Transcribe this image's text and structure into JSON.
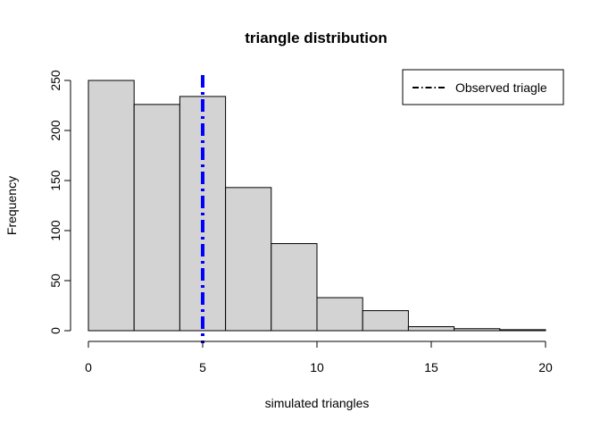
{
  "chart_data": {
    "type": "bar",
    "title": "triangle distribution",
    "xlabel": "simulated triangles",
    "ylabel": "Frequency",
    "bins": [
      {
        "from": 0,
        "to": 2,
        "count": 250
      },
      {
        "from": 2,
        "to": 4,
        "count": 226
      },
      {
        "from": 4,
        "to": 6,
        "count": 234
      },
      {
        "from": 6,
        "to": 8,
        "count": 143
      },
      {
        "from": 8,
        "to": 10,
        "count": 87
      },
      {
        "from": 10,
        "to": 12,
        "count": 33
      },
      {
        "from": 12,
        "to": 14,
        "count": 20
      },
      {
        "from": 14,
        "to": 16,
        "count": 4
      },
      {
        "from": 16,
        "to": 18,
        "count": 2
      },
      {
        "from": 18,
        "to": 20,
        "count": 1
      }
    ],
    "xlim": [
      0,
      20
    ],
    "ylim": [
      0,
      250
    ],
    "x_ticks": [
      0,
      5,
      10,
      15,
      20
    ],
    "y_ticks": [
      0,
      50,
      100,
      150,
      200,
      250
    ],
    "reference_line": {
      "x": 5,
      "color": "#0000ff",
      "style": "dot-dash",
      "name": "Observed triagle"
    },
    "legend": {
      "position": "top-right",
      "entries": [
        "Observed triagle"
      ]
    },
    "bar_fill": "#d3d3d3",
    "bar_stroke": "#000000",
    "grid": false
  }
}
